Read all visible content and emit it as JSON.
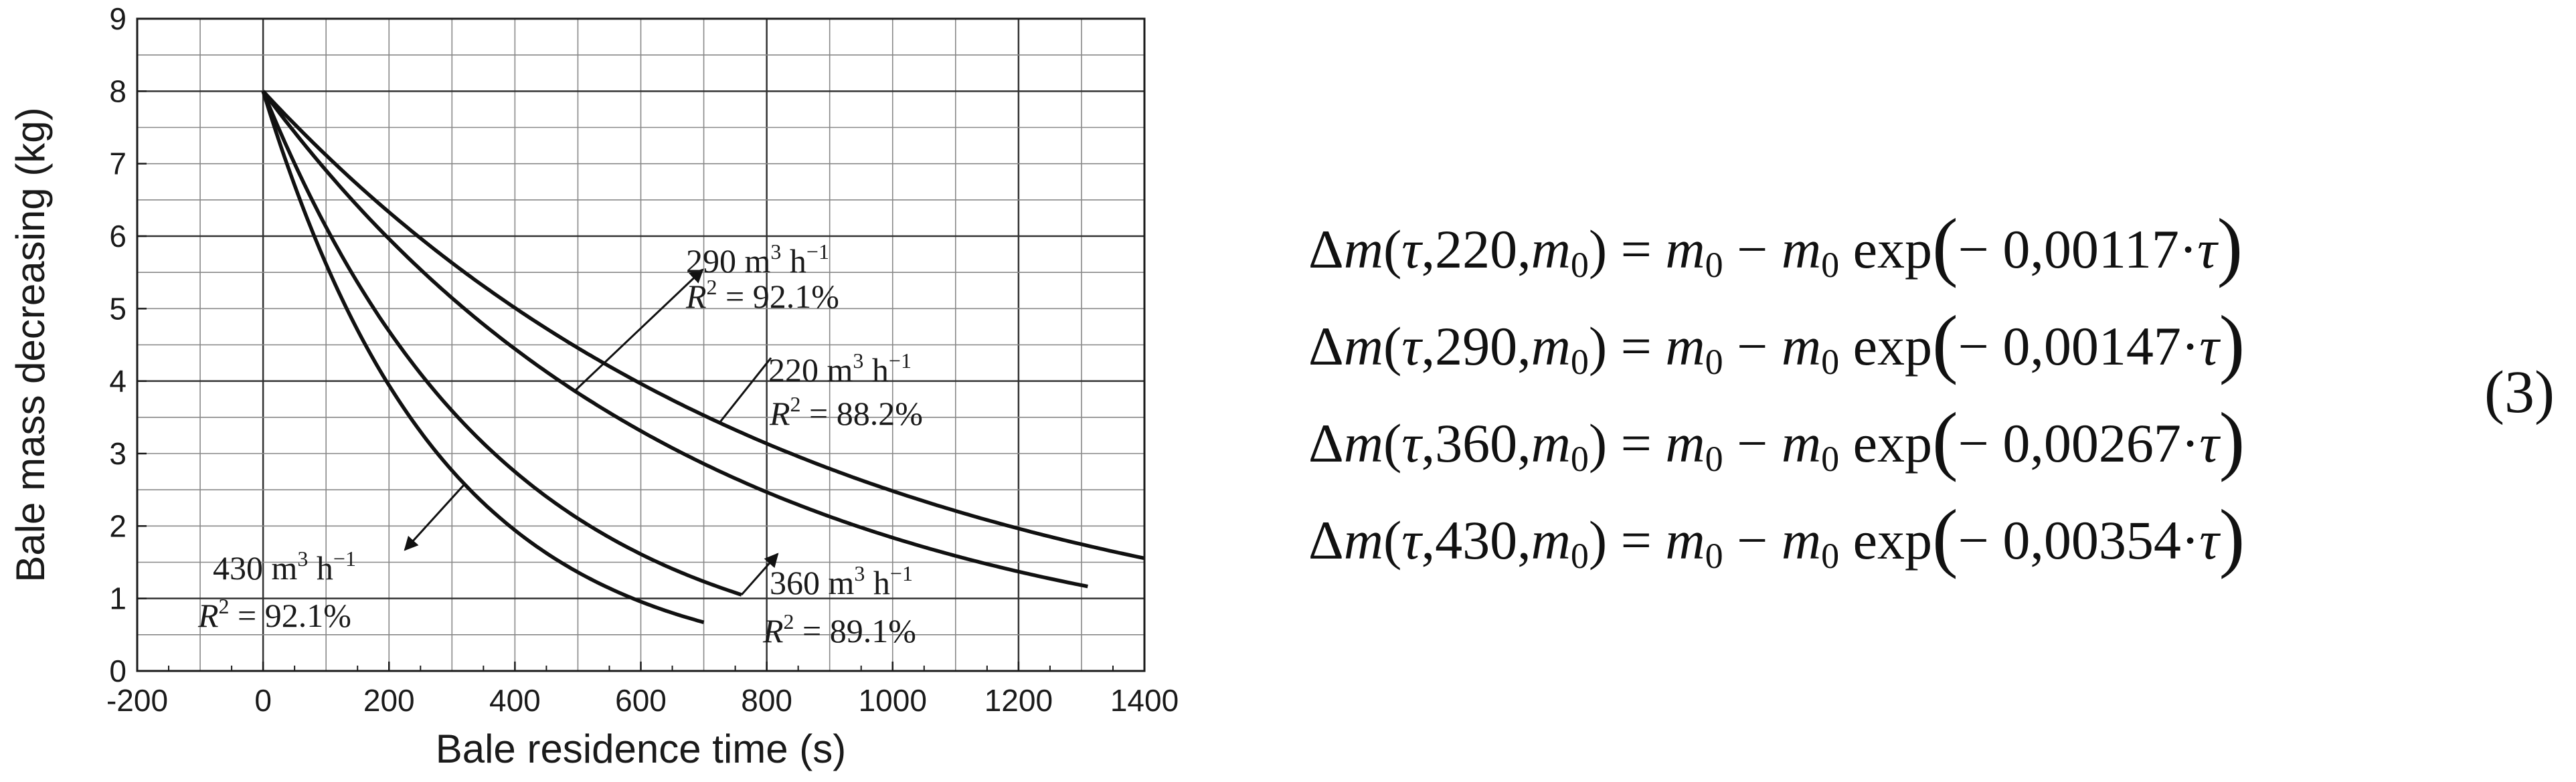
{
  "chart_data": {
    "type": "line",
    "xlabel": "Bale residence time (s)",
    "ylabel": "Bale mass decreasing (kg)",
    "xlim": [
      -200,
      1400
    ],
    "ylim": [
      0,
      9
    ],
    "x_ticks": [
      -200,
      0,
      200,
      400,
      600,
      800,
      1000,
      1200,
      1400
    ],
    "y_ticks": [
      0,
      1,
      2,
      3,
      4,
      5,
      6,
      7,
      8,
      9
    ],
    "x_tick_labels": [
      "-200",
      "0",
      "200",
      "400",
      "600",
      "800",
      "1000",
      "1200",
      "1400"
    ],
    "y_tick_labels": [
      "0",
      "1",
      "2",
      "3",
      "4",
      "5",
      "6",
      "7",
      "8",
      "9"
    ],
    "grid": true,
    "m0": 8,
    "series": [
      {
        "k": 0.00117,
        "x_end": 1400,
        "flow_label": "220 m",
        "flow_sup": "3",
        "flow_unit": "h",
        "flow_unit_sup": "−1",
        "r2_label": "R",
        "r2_sup": "2",
        "r2_value": "= 88.2%"
      },
      {
        "k": 0.00147,
        "x_end": 1310,
        "flow_label": "290 m",
        "flow_sup": "3",
        "flow_unit": "h",
        "flow_unit_sup": "−1",
        "r2_label": "R",
        "r2_sup": "2",
        "r2_value": "= 92.1%"
      },
      {
        "k": 0.00267,
        "x_end": 760,
        "flow_label": "360 m",
        "flow_sup": "3",
        "flow_unit": "h",
        "flow_unit_sup": "−1",
        "r2_label": "R",
        "r2_sup": "2",
        "r2_value": "= 89.1%"
      },
      {
        "k": 0.00354,
        "x_end": 700,
        "flow_label": "430 m",
        "flow_sup": "3",
        "flow_unit": "h",
        "flow_unit_sup": "−1",
        "r2_label": "R",
        "r2_sup": "2",
        "r2_value": "= 92.1%"
      }
    ]
  },
  "equations": [
    {
      "delta": "Δ",
      "m": "m",
      "open": "(",
      "tau": "τ",
      "flow": ",220,",
      "m0": "m",
      "sub0": "0",
      "close": ")",
      "eq": " = ",
      "rhs_m": "m",
      "minus": " − ",
      "exp": " exp",
      "coef": "− 0,00117·"
    },
    {
      "delta": "Δ",
      "m": "m",
      "open": "(",
      "tau": "τ",
      "flow": ",290,",
      "m0": "m",
      "sub0": "0",
      "close": ")",
      "eq": " = ",
      "rhs_m": "m",
      "minus": " − ",
      "exp": " exp",
      "coef": "− 0,00147·"
    },
    {
      "delta": "Δ",
      "m": "m",
      "open": "(",
      "tau": "τ",
      "flow": ",360,",
      "m0": "m",
      "sub0": "0",
      "close": ")",
      "eq": " = ",
      "rhs_m": "m",
      "minus": " − ",
      "exp": " exp",
      "coef": "− 0,00267·"
    },
    {
      "delta": "Δ",
      "m": "m",
      "open": "(",
      "tau": "τ",
      "flow": ",430,",
      "m0": "m",
      "sub0": "0",
      "close": ")",
      "eq": " = ",
      "rhs_m": "m",
      "minus": " − ",
      "exp": " exp",
      "coef": "− 0,00354·"
    }
  ],
  "equation_number": "(3)"
}
